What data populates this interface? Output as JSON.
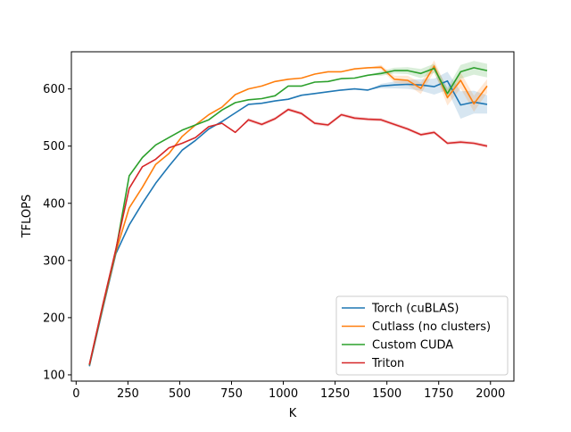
{
  "chart_data": {
    "type": "line",
    "title": "",
    "xlabel": "K",
    "ylabel": "TFLOPS",
    "xlim": [
      -23,
      2113
    ],
    "ylim": [
      89,
      665
    ],
    "xticks": [
      0,
      250,
      500,
      750,
      1000,
      1250,
      1500,
      1750,
      2000
    ],
    "yticks": [
      100,
      200,
      300,
      400,
      500,
      600
    ],
    "legend_position": "lower-right",
    "grid": false,
    "x": [
      64,
      128,
      192,
      256,
      320,
      384,
      448,
      512,
      576,
      640,
      704,
      768,
      832,
      896,
      960,
      1024,
      1088,
      1152,
      1216,
      1280,
      1344,
      1408,
      1472,
      1536,
      1600,
      1664,
      1728,
      1792,
      1856,
      1920,
      1984
    ],
    "series": [
      {
        "name": "Torch (cuBLAS)",
        "color": "#1f77b4",
        "values": [
          115,
          215,
          312,
          362,
          400,
          435,
          465,
          493,
          510,
          530,
          543,
          558,
          573,
          575,
          579,
          582,
          589,
          592,
          595,
          598,
          600,
          598,
          605,
          607,
          608,
          607,
          604,
          614,
          572,
          577,
          573
        ],
        "band": [
          0,
          0,
          0,
          0,
          0,
          0,
          0,
          0,
          0,
          0,
          0,
          0,
          0,
          0,
          0,
          0,
          0,
          0,
          0,
          0,
          0,
          0,
          4,
          6,
          8,
          10,
          14,
          16,
          24,
          20,
          16
        ]
      },
      {
        "name": "Cutlass (no clusters)",
        "color": "#ff7f0e",
        "values": [
          117,
          218,
          315,
          392,
          428,
          468,
          487,
          517,
          537,
          555,
          568,
          590,
          600,
          605,
          613,
          617,
          619,
          626,
          630,
          630,
          635,
          637,
          638,
          617,
          615,
          601,
          640,
          585,
          615,
          574,
          605
        ],
        "band": [
          0,
          0,
          0,
          0,
          0,
          0,
          0,
          0,
          0,
          0,
          0,
          0,
          0,
          0,
          0,
          0,
          0,
          0,
          0,
          0,
          0,
          0,
          4,
          6,
          8,
          10,
          10,
          14,
          14,
          14,
          12
        ]
      },
      {
        "name": "Custom CUDA",
        "color": "#2ca02c",
        "values": [
          117,
          220,
          318,
          448,
          480,
          502,
          515,
          528,
          537,
          546,
          563,
          576,
          581,
          583,
          588,
          605,
          605,
          612,
          613,
          618,
          619,
          624,
          627,
          632,
          632,
          627,
          636,
          592,
          630,
          637,
          632
        ],
        "band": [
          0,
          0,
          0,
          0,
          0,
          0,
          0,
          0,
          0,
          0,
          0,
          0,
          0,
          0,
          0,
          0,
          0,
          0,
          0,
          0,
          0,
          0,
          4,
          5,
          6,
          8,
          8,
          10,
          12,
          12,
          12
        ]
      },
      {
        "name": "Triton",
        "color": "#d62728",
        "values": [
          118,
          222,
          320,
          426,
          464,
          477,
          497,
          505,
          515,
          534,
          540,
          524,
          546,
          538,
          548,
          564,
          557,
          540,
          537,
          555,
          549,
          547,
          546,
          538,
          530,
          520,
          524,
          505,
          507,
          505,
          500
        ],
        "band": [
          0,
          0,
          0,
          0,
          0,
          0,
          0,
          0,
          0,
          0,
          0,
          0,
          3,
          3,
          3,
          3,
          3,
          3,
          3,
          3,
          3,
          3,
          3,
          3,
          3,
          3,
          3,
          3,
          3,
          3,
          3
        ]
      }
    ]
  }
}
